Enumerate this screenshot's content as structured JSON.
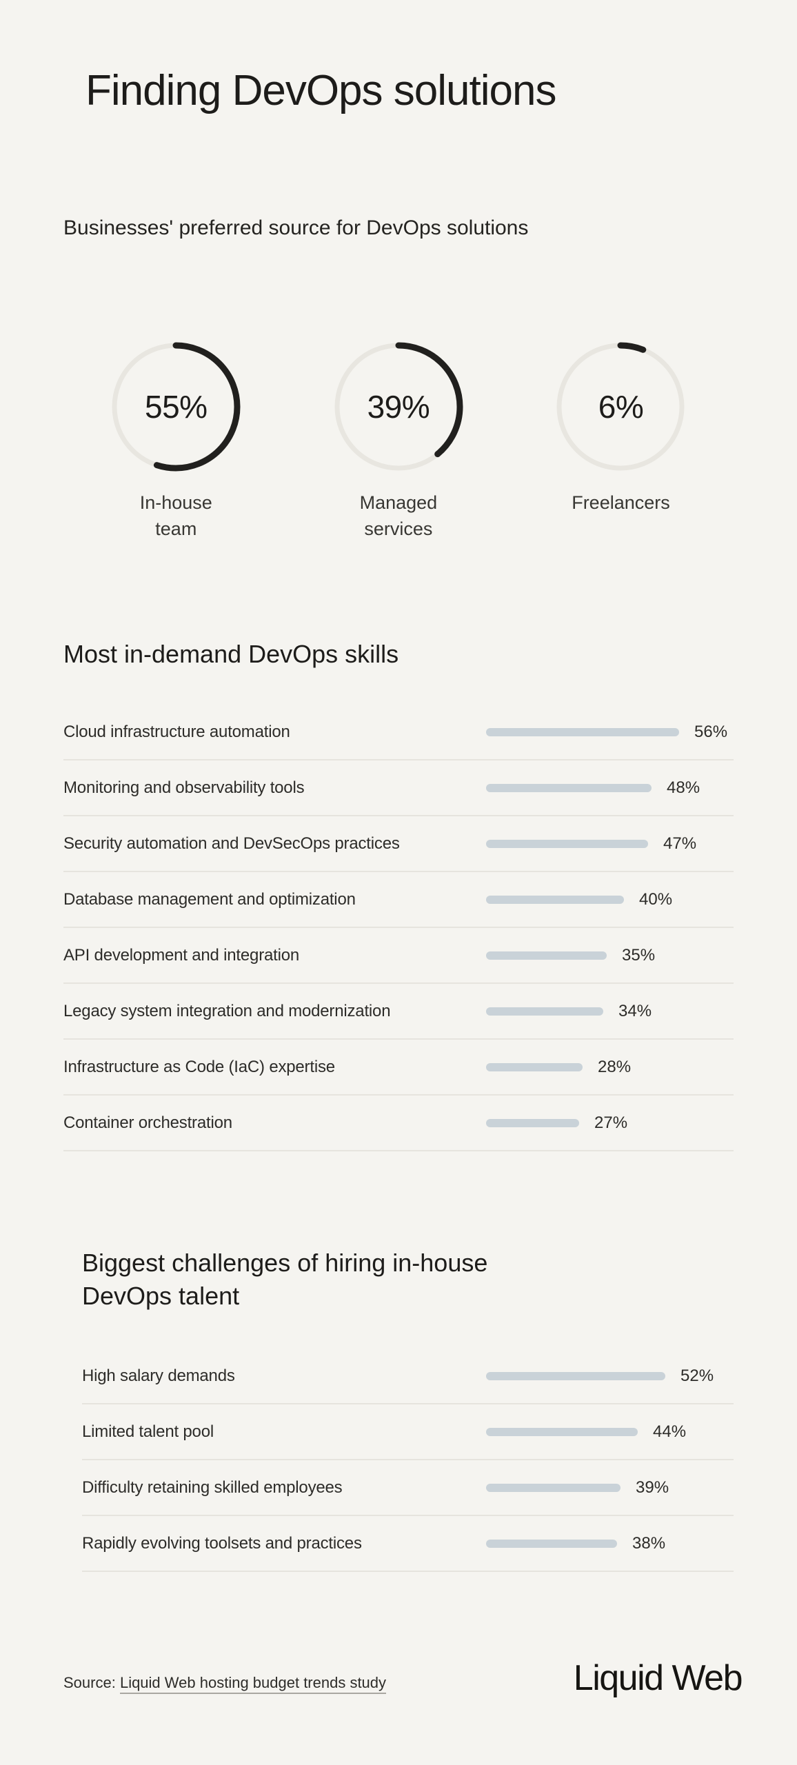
{
  "page": {
    "title": "Finding DevOps solutions"
  },
  "donut_section": {
    "heading": "Businesses' preferred source for DevOps solutions",
    "items": [
      {
        "value_label": "55%",
        "pct": 55,
        "caption": "In-house team"
      },
      {
        "value_label": "39%",
        "pct": 39,
        "caption": "Managed services"
      },
      {
        "value_label": "6%",
        "pct": 6,
        "caption": "Freelancers"
      }
    ]
  },
  "skills_section": {
    "heading": "Most in-demand DevOps skills",
    "rows": [
      {
        "label": "Cloud infrastructure automation",
        "pct": 56,
        "value_label": "56%"
      },
      {
        "label": "Monitoring and observability tools",
        "pct": 48,
        "value_label": "48%"
      },
      {
        "label": "Security automation and DevSecOps practices",
        "pct": 47,
        "value_label": "47%"
      },
      {
        "label": "Database management and optimization",
        "pct": 40,
        "value_label": "40%"
      },
      {
        "label": "API development and integration",
        "pct": 35,
        "value_label": "35%"
      },
      {
        "label": "Legacy system integration and modernization",
        "pct": 34,
        "value_label": "34%"
      },
      {
        "label": "Infrastructure as Code (IaC) expertise",
        "pct": 28,
        "value_label": "28%"
      },
      {
        "label": "Container orchestration",
        "pct": 27,
        "value_label": "27%"
      }
    ]
  },
  "challenges_section": {
    "heading": "Biggest challenges of hiring in-house DevOps talent",
    "rows": [
      {
        "label": "High salary demands",
        "pct": 52,
        "value_label": "52%"
      },
      {
        "label": "Limited talent pool",
        "pct": 44,
        "value_label": "44%"
      },
      {
        "label": "Difficulty retaining skilled employees",
        "pct": 39,
        "value_label": "39%"
      },
      {
        "label": "Rapidly evolving toolsets and practices",
        "pct": 38,
        "value_label": "38%"
      }
    ]
  },
  "footer": {
    "source_prefix": "Source:",
    "source_link_text": "Liquid Web hosting budget trends study",
    "logo_text": "Liquid Web"
  },
  "colors": {
    "background": "#f5f4f0",
    "bar_fill": "#c9d2d8",
    "donut_track": "#e8e6e0",
    "donut_arc": "#21201e",
    "separator": "#e6e4de",
    "text_primary": "#1d1c1a"
  },
  "chart_data": [
    {
      "type": "pie",
      "title": "Businesses' preferred source for DevOps solutions",
      "categories": [
        "In-house team",
        "Managed services",
        "Freelancers"
      ],
      "values": [
        55,
        39,
        6
      ],
      "unit": "%",
      "style": "ring-gauges, dark arc clockwise from 12 o'clock on light track",
      "legend_position": "below-each-gauge"
    },
    {
      "type": "bar",
      "title": "Most in-demand DevOps skills",
      "orientation": "horizontal",
      "categories": [
        "Cloud infrastructure automation",
        "Monitoring and observability tools",
        "Security automation and DevSecOps practices",
        "Database management and optimization",
        "API development and integration",
        "Legacy system integration and modernization",
        "Infrastructure as Code (IaC) expertise",
        "Container orchestration"
      ],
      "values": [
        56,
        48,
        47,
        40,
        35,
        34,
        28,
        27
      ],
      "unit": "%",
      "xlim": [
        0,
        100
      ],
      "grid": false,
      "data_labels": "right-of-bar"
    },
    {
      "type": "bar",
      "title": "Biggest challenges of hiring in-house DevOps talent",
      "orientation": "horizontal",
      "categories": [
        "High salary demands",
        "Limited talent pool",
        "Difficulty retaining skilled employees",
        "Rapidly evolving toolsets and practices"
      ],
      "values": [
        52,
        44,
        39,
        38
      ],
      "unit": "%",
      "xlim": [
        0,
        100
      ],
      "grid": false,
      "data_labels": "right-of-bar"
    }
  ]
}
